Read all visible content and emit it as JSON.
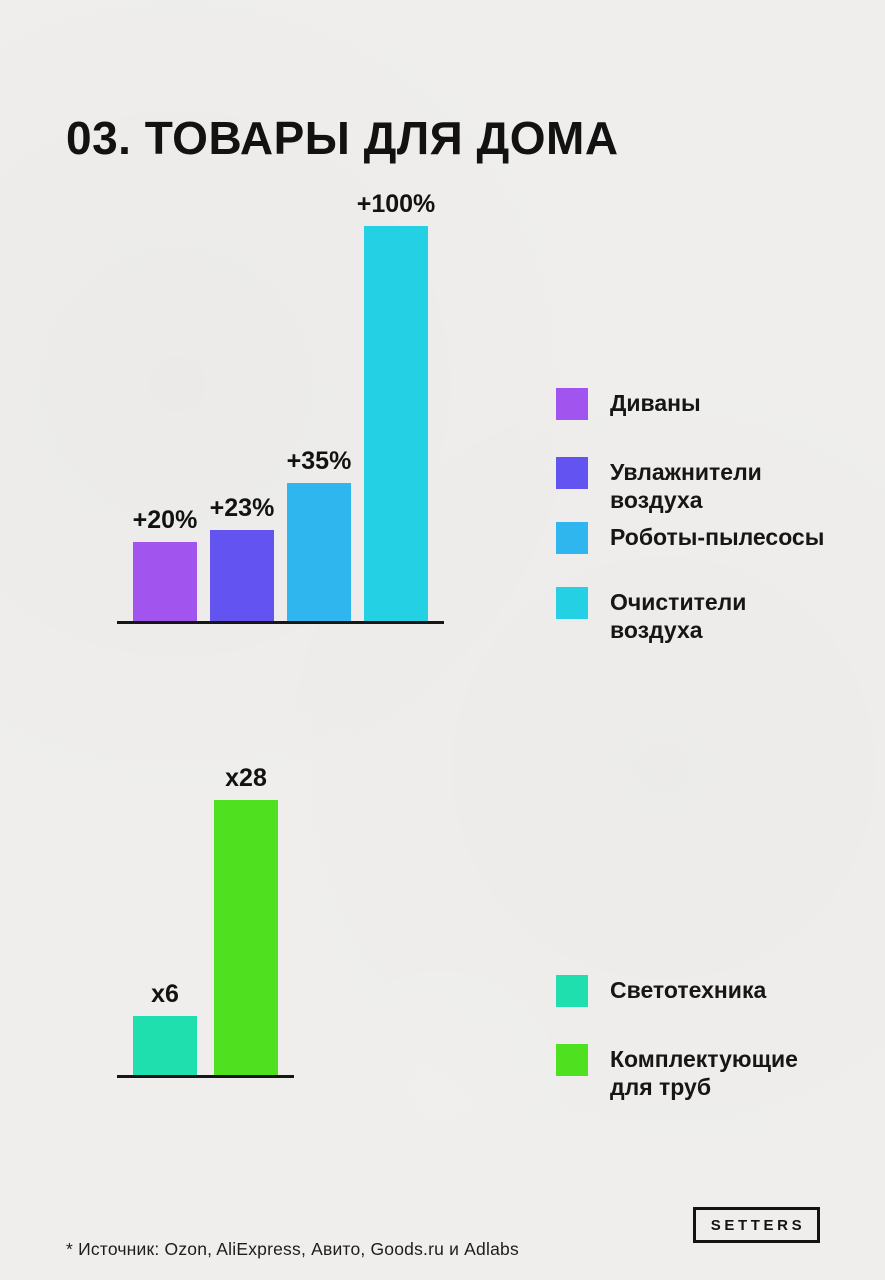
{
  "page": {
    "title": "03. ТОВАРЫ ДЛЯ ДОМА",
    "background_color": "#efeeec",
    "text_color": "#141414"
  },
  "chart_data": [
    {
      "type": "bar",
      "title": "",
      "categories": [
        "Диваны",
        "Увлажнители воздуха",
        "Роботы-пылесосы",
        "Очистители воздуха"
      ],
      "values": [
        20,
        23,
        35,
        100
      ],
      "value_labels": [
        "+20%",
        "+23%",
        "+35%",
        "+100%"
      ],
      "unit": "%",
      "colors": [
        "#a155ee",
        "#6354f2",
        "#2fb6ee",
        "#24d0e3"
      ],
      "ylim": [
        0,
        100
      ],
      "grid": false,
      "axis_line_color": "#161616",
      "legend_position": "right",
      "legend": [
        {
          "label": "Диваны",
          "color": "#a155ee"
        },
        {
          "label": "Увлажнители\nвоздуха",
          "color": "#6354f2"
        },
        {
          "label": "Роботы-пылесосы",
          "color": "#2fb6ee"
        },
        {
          "label": "Очистители\nвоздуха",
          "color": "#24d0e3"
        }
      ]
    },
    {
      "type": "bar",
      "title": "",
      "categories": [
        "Светотехника",
        "Комплектующие для труб"
      ],
      "values": [
        6,
        28
      ],
      "value_labels": [
        "x6",
        "x28"
      ],
      "unit": "x",
      "colors": [
        "#1fdfae",
        "#4fe020"
      ],
      "ylim": [
        0,
        28
      ],
      "grid": false,
      "axis_line_color": "#161616",
      "legend_position": "right",
      "legend": [
        {
          "label": "Светотехника",
          "color": "#1fdfae"
        },
        {
          "label": "Комплектующие\nдля труб",
          "color": "#4fe020"
        }
      ]
    }
  ],
  "footer": {
    "source_note": "* Источник: Ozon, AliExpress, Авито, Goods.ru и Adlabs",
    "logo_text": "SETTERS"
  }
}
